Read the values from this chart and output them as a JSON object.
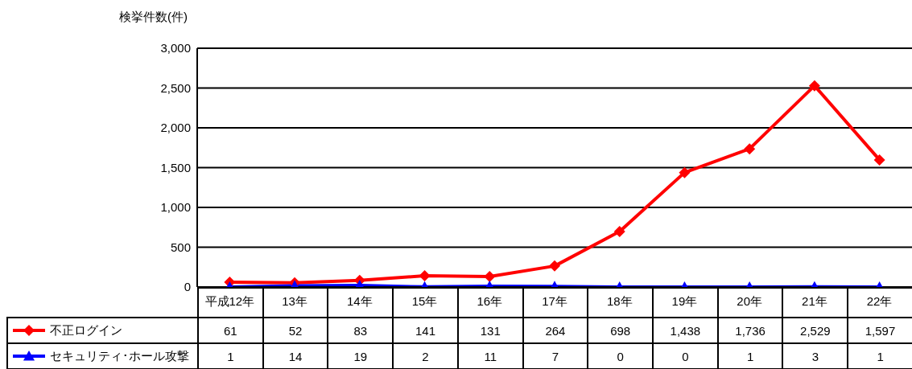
{
  "chart_data": {
    "type": "line",
    "ylabel": "検挙件数(件)",
    "categories": [
      "平成12年",
      "13年",
      "14年",
      "15年",
      "16年",
      "17年",
      "18年",
      "19年",
      "20年",
      "21年",
      "22年"
    ],
    "series": [
      {
        "name": "不正ログイン",
        "color": "#ff0000",
        "marker": "diamond",
        "values": [
          61,
          52,
          83,
          141,
          131,
          264,
          698,
          1438,
          1736,
          2529,
          1597
        ],
        "value_labels": [
          "61",
          "52",
          "83",
          "141",
          "131",
          "264",
          "698",
          "1,438",
          "1,736",
          "2,529",
          "1,597"
        ]
      },
      {
        "name": "セキュリティ･ホール攻撃",
        "color": "#0000ff",
        "marker": "triangle",
        "values": [
          1,
          14,
          19,
          2,
          11,
          7,
          0,
          0,
          1,
          3,
          1
        ],
        "value_labels": [
          "1",
          "14",
          "19",
          "2",
          "11",
          "7",
          "0",
          "0",
          "1",
          "3",
          "1"
        ]
      }
    ],
    "ylim": [
      0,
      3000
    ],
    "yticks": [
      0,
      500,
      {
        "value": 1000,
        "label": "1,000"
      },
      {
        "value": 1500,
        "label": "1,500"
      },
      {
        "value": 2000,
        "label": "2,000"
      },
      {
        "value": 2500,
        "label": "2,500"
      },
      {
        "value": 3000,
        "label": "3,000"
      }
    ],
    "grid": "y",
    "legend": "bottom",
    "line_style": "solid"
  }
}
